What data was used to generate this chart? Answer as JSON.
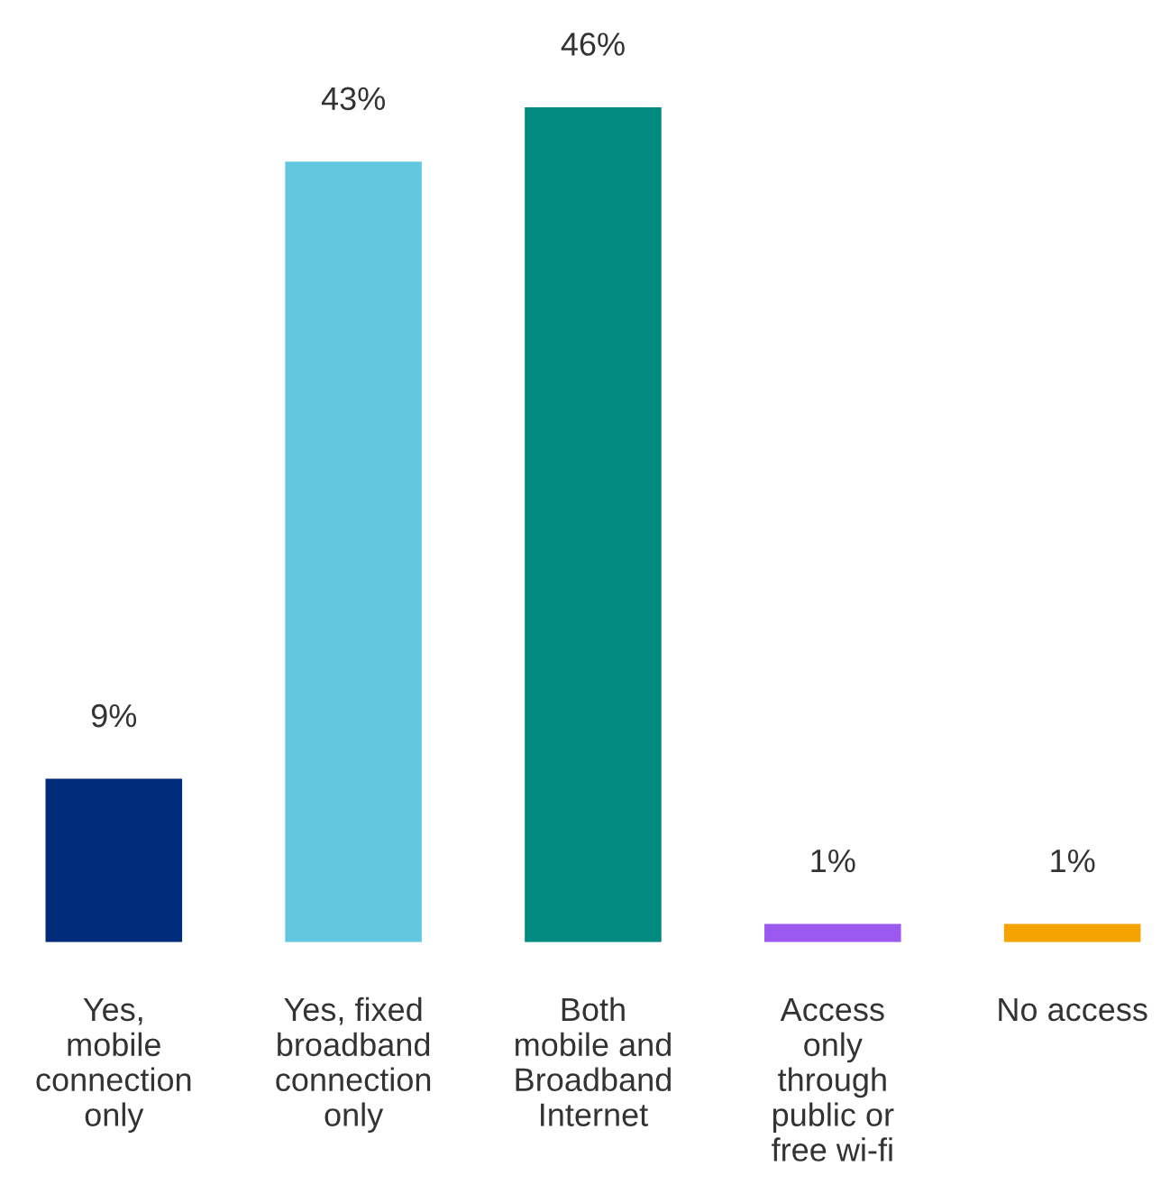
{
  "chart_data": {
    "type": "bar",
    "categories": [
      "Yes,\nmobile\nconnection\nonly",
      "Yes, fixed\nbroadband\nconnection\nonly",
      "Both\nmobile and\nBroadband\nInternet",
      "Access\nonly\nthrough\npublic or\nfree wi-fi",
      "No access"
    ],
    "values": [
      9,
      43,
      46,
      1,
      1
    ],
    "colors": [
      "#002b7a",
      "#62c8e0",
      "#008a80",
      "#9b59f0",
      "#f5a300"
    ],
    "value_labels": [
      "9%",
      "43%",
      "46%",
      "1%",
      "1%"
    ],
    "grid": false,
    "legend": false
  }
}
